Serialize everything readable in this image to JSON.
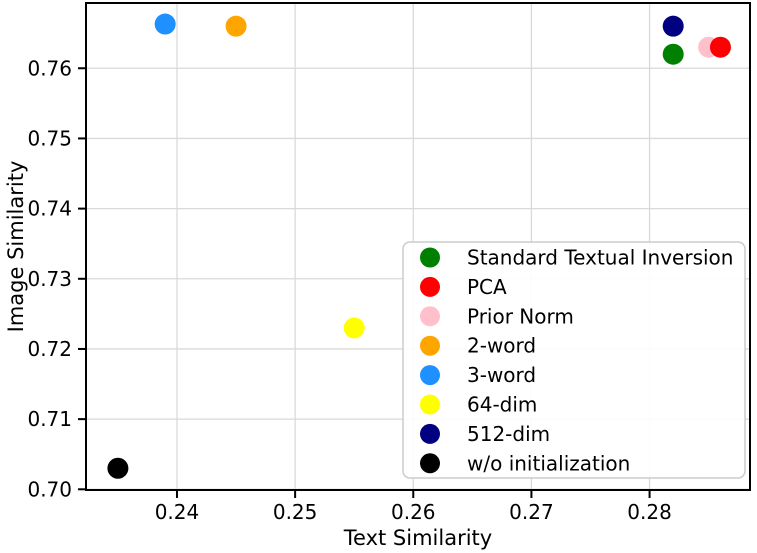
{
  "chart_data": {
    "type": "scatter",
    "title": "",
    "xlabel": "Text Similarity",
    "ylabel": "Image Similarity",
    "xlim": [
      0.2323,
      0.2885
    ],
    "ylim": [
      0.6999,
      0.7693
    ],
    "xticks": [
      0.24,
      0.25,
      0.26,
      0.27,
      0.28
    ],
    "yticks": [
      0.7,
      0.71,
      0.72,
      0.73,
      0.74,
      0.75,
      0.76
    ],
    "grid": true,
    "grid_color": "#d9d9d9",
    "spine_color": "#000000",
    "legend_position": "lower right",
    "series": [
      {
        "name": "Standard Textual Inversion",
        "color": "#008000",
        "x": 0.282,
        "y": 0.762,
        "zorder": 1
      },
      {
        "name": "PCA",
        "color": "#ff0000",
        "x": 0.286,
        "y": 0.763,
        "zorder": 2
      },
      {
        "name": "Prior Norm",
        "color": "#ffc0cb",
        "x": 0.285,
        "y": 0.763,
        "zorder": 1
      },
      {
        "name": "2-word",
        "color": "#ffa500",
        "x": 0.245,
        "y": 0.766,
        "zorder": 1
      },
      {
        "name": "3-word",
        "color": "#1e90ff",
        "x": 0.239,
        "y": 0.7663,
        "zorder": 1
      },
      {
        "name": "64-dim",
        "color": "#ffff00",
        "x": 0.255,
        "y": 0.723,
        "zorder": 1
      },
      {
        "name": "512-dim",
        "color": "#000080",
        "x": 0.282,
        "y": 0.766,
        "zorder": 1
      },
      {
        "name": "w/o initialization",
        "color": "#000000",
        "x": 0.235,
        "y": 0.703,
        "zorder": 1
      }
    ]
  }
}
